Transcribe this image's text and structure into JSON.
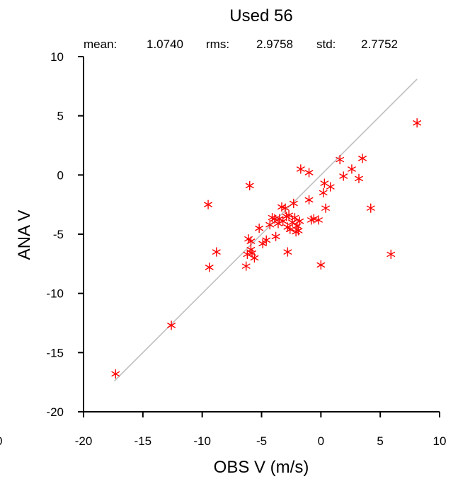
{
  "chart_data": {
    "type": "scatter",
    "title": "Used  56",
    "stats": {
      "mean_label": "mean:",
      "mean_value": "1.0740",
      "rms_label": "rms:",
      "rms_value": "2.9758",
      "std_label": "std:",
      "std_value": "2.7752"
    },
    "xlabel": "OBS V  (m/s)",
    "ylabel": "ANA V",
    "xlim": [
      -20,
      10
    ],
    "ylim": [
      -20,
      10
    ],
    "x_ticks": [
      "-20",
      "-15",
      "-10",
      "-5",
      "0",
      "5",
      "10"
    ],
    "y_ticks": [
      "-20",
      "-15",
      "-10",
      "-5",
      "0",
      "5",
      "10"
    ],
    "marker": "asterisk",
    "marker_color": "#ff0000",
    "line_color": "#bfbfbf",
    "line_extent": [
      -17.4,
      8.1
    ],
    "left_edge_label": "0",
    "points": [
      [
        -17.3,
        -16.8
      ],
      [
        -12.6,
        -12.7
      ],
      [
        -9.5,
        -2.5
      ],
      [
        -9.4,
        -7.8
      ],
      [
        -8.8,
        -6.5
      ],
      [
        -6.3,
        -7.7
      ],
      [
        -6.2,
        -6.7
      ],
      [
        -6.1,
        -5.4
      ],
      [
        -6.0,
        -0.9
      ],
      [
        -5.9,
        -5.6
      ],
      [
        -5.9,
        -6.3
      ],
      [
        -5.8,
        -6.6
      ],
      [
        -5.6,
        -7.0
      ],
      [
        -5.2,
        -4.5
      ],
      [
        -4.9,
        -5.8
      ],
      [
        -4.6,
        -5.5
      ],
      [
        -4.3,
        -4.2
      ],
      [
        -4.1,
        -3.6
      ],
      [
        -3.9,
        -3.7
      ],
      [
        -3.8,
        -5.2
      ],
      [
        -3.6,
        -4.1
      ],
      [
        -3.5,
        -3.7
      ],
      [
        -3.3,
        -2.7
      ],
      [
        -3.2,
        -3.9
      ],
      [
        -3.0,
        -2.8
      ],
      [
        -2.9,
        -3.5
      ],
      [
        -2.8,
        -6.5
      ],
      [
        -2.8,
        -4.4
      ],
      [
        -2.7,
        -3.4
      ],
      [
        -2.6,
        -4.6
      ],
      [
        -2.4,
        -4.0
      ],
      [
        -2.3,
        -2.4
      ],
      [
        -2.2,
        -3.6
      ],
      [
        -2.1,
        -4.8
      ],
      [
        -2.0,
        -4.3
      ],
      [
        -1.9,
        -4.7
      ],
      [
        -1.8,
        -3.9
      ],
      [
        -1.7,
        0.5
      ],
      [
        -1.0,
        0.2
      ],
      [
        -1.0,
        -2.1
      ],
      [
        -0.6,
        -3.7
      ],
      [
        -0.2,
        -3.8
      ],
      [
        0.0,
        -7.6
      ],
      [
        0.2,
        -1.5
      ],
      [
        0.3,
        -0.7
      ],
      [
        0.4,
        -2.8
      ],
      [
        0.8,
        -1.0
      ],
      [
        1.6,
        1.3
      ],
      [
        1.9,
        -0.1
      ],
      [
        2.6,
        0.5
      ],
      [
        3.2,
        -0.3
      ],
      [
        3.5,
        1.4
      ],
      [
        4.2,
        -2.8
      ],
      [
        5.9,
        -6.7
      ],
      [
        8.1,
        4.4
      ],
      [
        -0.8,
        -3.8
      ]
    ]
  }
}
